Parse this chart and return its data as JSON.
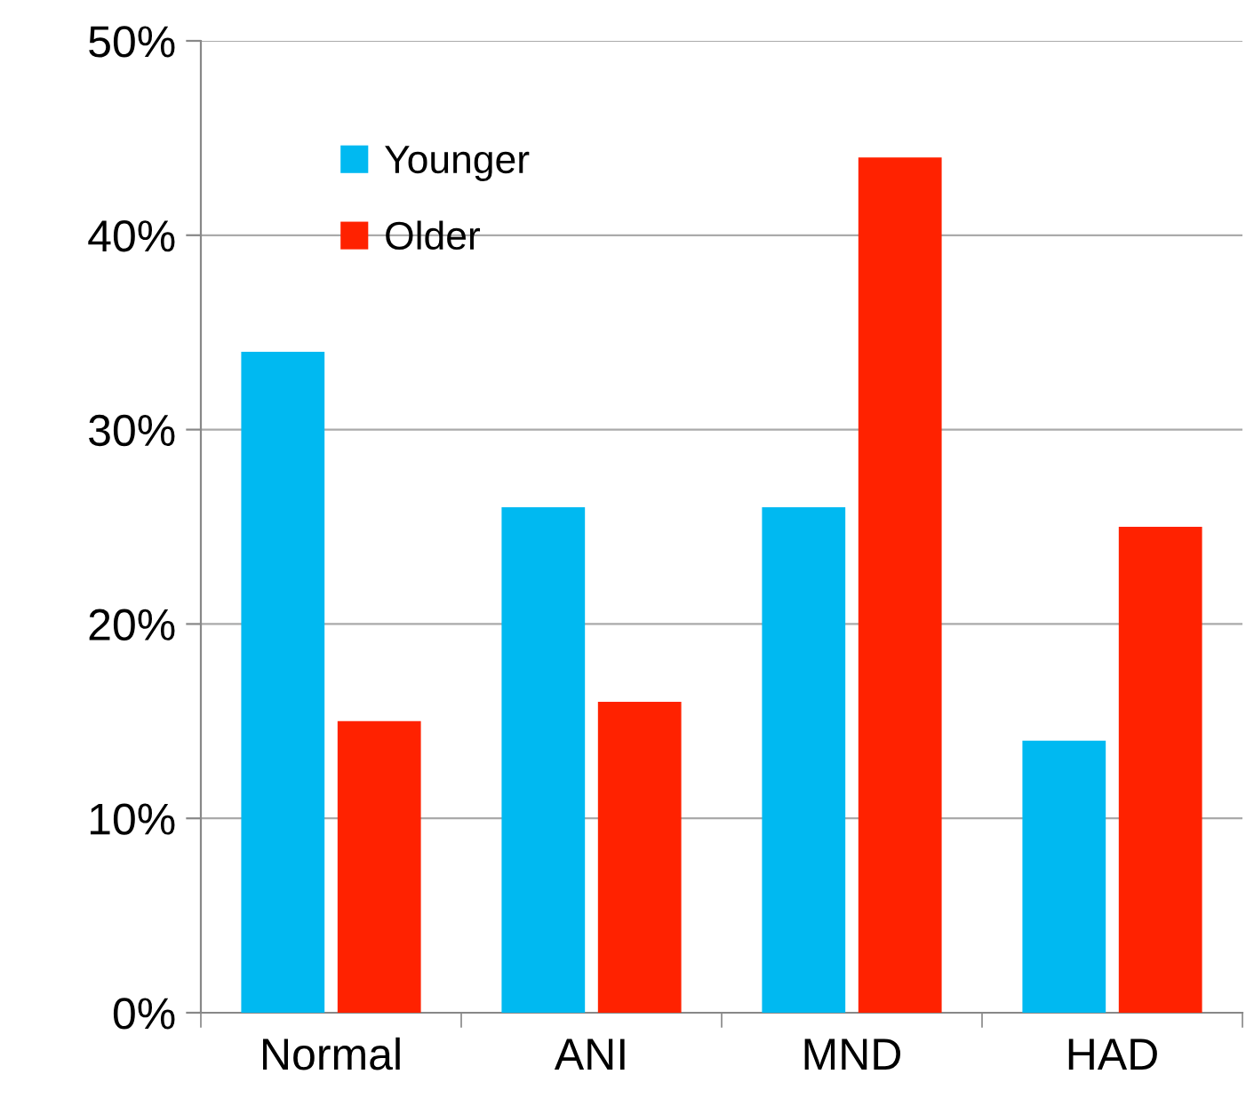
{
  "chart_data": {
    "type": "bar",
    "categories": [
      "Normal",
      "ANI",
      "MND",
      "HAD"
    ],
    "series": [
      {
        "name": "Younger",
        "color": "#00b9f1",
        "values": [
          34,
          26,
          26,
          14
        ]
      },
      {
        "name": "Older",
        "color": "#ff2200",
        "values": [
          15,
          16,
          44,
          25
        ]
      }
    ],
    "ylim": [
      0,
      50
    ],
    "yticks": [
      {
        "value": 0,
        "label": "0%"
      },
      {
        "value": 10,
        "label": "10%"
      },
      {
        "value": 20,
        "label": "20%"
      },
      {
        "value": 30,
        "label": "30%"
      },
      {
        "value": 40,
        "label": "40%"
      },
      {
        "value": 50,
        "label": "50%"
      }
    ],
    "grid": "y",
    "legend": "top left"
  }
}
